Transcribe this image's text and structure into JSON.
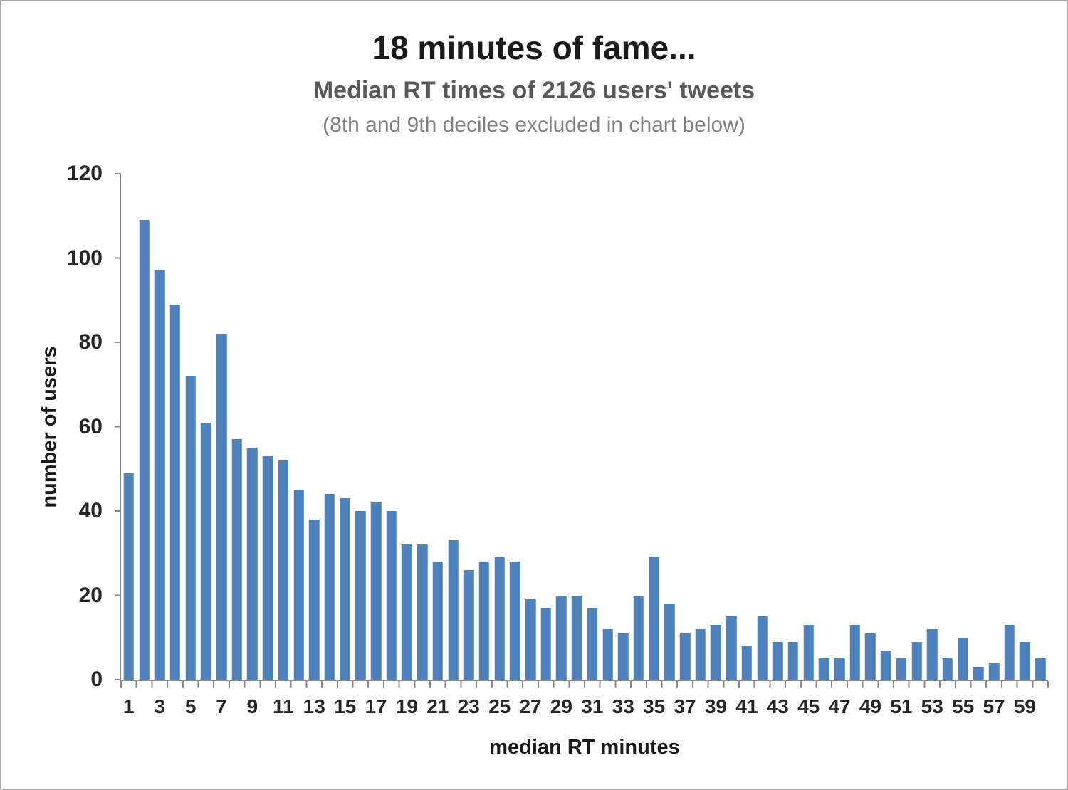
{
  "page": {
    "background": "#ffffff",
    "frame_color": "#a6a6a6"
  },
  "header": {
    "title": "18 minutes of fame...",
    "subtitle": "Median RT times of 2126 users' tweets",
    "note": "(8th and 9th deciles excluded in chart below)"
  },
  "chart_data": {
    "type": "bar",
    "title": "18 minutes of fame...",
    "subtitle": "Median RT times of 2126 users' tweets",
    "annotation": "(8th and 9th deciles excluded in chart below)",
    "xlabel": "median RT minutes",
    "ylabel": "number of users",
    "x": [
      1,
      2,
      3,
      4,
      5,
      6,
      7,
      8,
      9,
      10,
      11,
      12,
      13,
      14,
      15,
      16,
      17,
      18,
      19,
      20,
      21,
      22,
      23,
      24,
      25,
      26,
      27,
      28,
      29,
      30,
      31,
      32,
      33,
      34,
      35,
      36,
      37,
      38,
      39,
      40,
      41,
      42,
      43,
      44,
      45,
      46,
      47,
      48,
      49,
      50,
      51,
      52,
      53,
      54,
      55,
      56,
      57,
      58,
      59,
      60
    ],
    "values": [
      49,
      109,
      97,
      89,
      72,
      61,
      82,
      57,
      55,
      53,
      52,
      45,
      38,
      44,
      43,
      40,
      42,
      40,
      32,
      32,
      28,
      33,
      26,
      28,
      29,
      28,
      19,
      17,
      20,
      20,
      17,
      12,
      11,
      20,
      29,
      18,
      11,
      12,
      13,
      15,
      8,
      15,
      9,
      9,
      13,
      5,
      5,
      13,
      11,
      7,
      5,
      9,
      12,
      5,
      10,
      3,
      4,
      13,
      9,
      5
    ],
    "ylim": [
      0,
      120
    ],
    "yticks": [
      0,
      20,
      40,
      60,
      80,
      100,
      120
    ],
    "xtick_labels": [
      "1",
      "3",
      "5",
      "7",
      "9",
      "11",
      "13",
      "15",
      "17",
      "19",
      "21",
      "23",
      "25",
      "27",
      "29",
      "31",
      "33",
      "35",
      "37",
      "39",
      "41",
      "43",
      "45",
      "47",
      "49",
      "51",
      "53",
      "55",
      "57",
      "59"
    ],
    "grid": false,
    "legend": false,
    "bar_color": "#4F81BD",
    "axis_color": "#8a8a8a"
  }
}
